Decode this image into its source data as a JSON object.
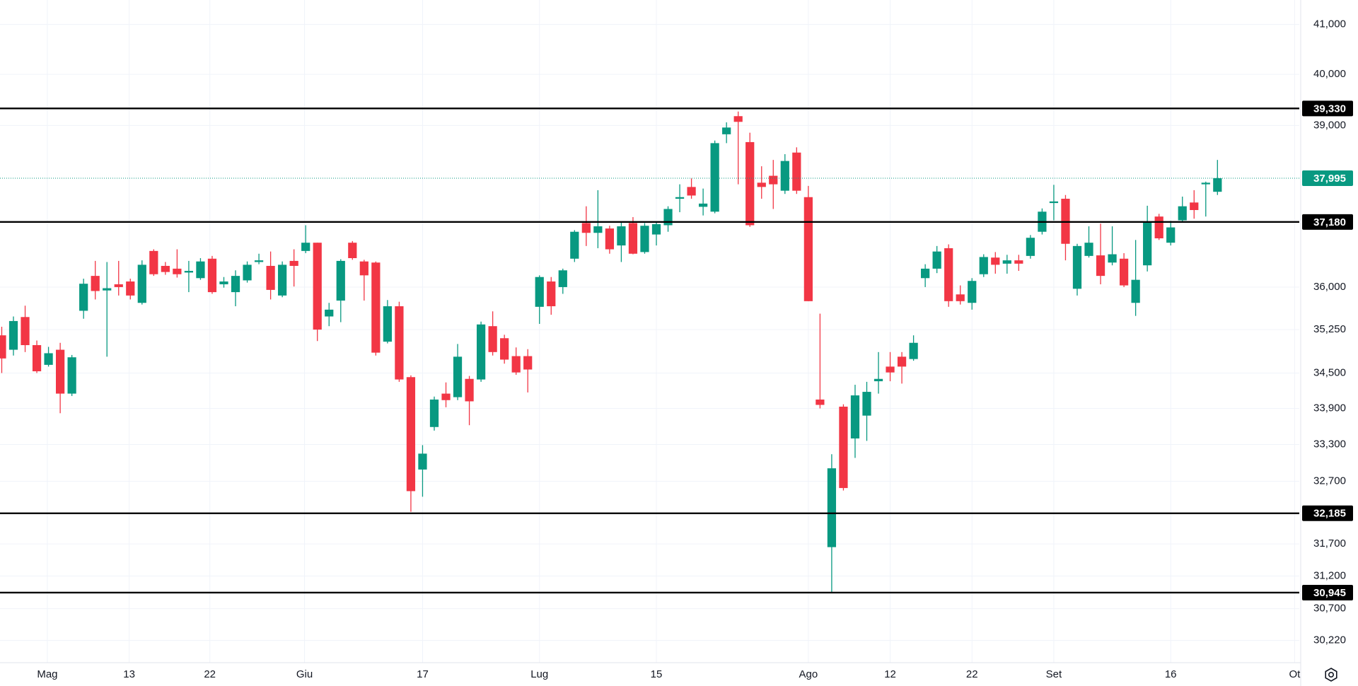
{
  "chart_data": {
    "type": "candlestick",
    "log_scale": true,
    "grid": true,
    "up_color": "#089981",
    "down_color": "#f23645",
    "level_color": "#000000",
    "xlim": [
      -0.15,
      111
    ],
    "ylim": [
      29890,
      41500
    ],
    "xticks": [
      {
        "value": 3.9,
        "label": "Mag"
      },
      {
        "value": 10.9,
        "label": "13"
      },
      {
        "value": 17.8,
        "label": "22"
      },
      {
        "value": 25.9,
        "label": "Giu"
      },
      {
        "value": 36,
        "label": "17"
      },
      {
        "value": 46,
        "label": "Lug"
      },
      {
        "value": 56,
        "label": "15"
      },
      {
        "value": 69,
        "label": "Ago"
      },
      {
        "value": 76,
        "label": "12"
      },
      {
        "value": 83,
        "label": "22"
      },
      {
        "value": 90,
        "label": "Set"
      },
      {
        "value": 100,
        "label": "16"
      },
      {
        "value": 110.6,
        "label": "Ot"
      }
    ],
    "yticks": [
      {
        "value": 41000,
        "label": "41,000"
      },
      {
        "value": 40000,
        "label": "40,000"
      },
      {
        "value": 39000,
        "label": "39,000"
      },
      {
        "value": 36000,
        "label": "36,000"
      },
      {
        "value": 35250,
        "label": "35,250"
      },
      {
        "value": 34500,
        "label": "34,500"
      },
      {
        "value": 33900,
        "label": "33,900"
      },
      {
        "value": 33300,
        "label": "33,300"
      },
      {
        "value": 32700,
        "label": "32,700"
      },
      {
        "value": 31700,
        "label": "31,700"
      },
      {
        "value": 31200,
        "label": "31,200"
      },
      {
        "value": 30700,
        "label": "30,700"
      },
      {
        "value": 30220,
        "label": "30,220"
      }
    ],
    "levels": [
      {
        "value": 39330,
        "label": "39,330"
      },
      {
        "value": 37180,
        "label": "37,180"
      },
      {
        "value": 32185,
        "label": "32,185"
      },
      {
        "value": 30945,
        "label": "30,945"
      }
    ],
    "last_price": {
      "value": 37995,
      "label": "37,995"
    },
    "open": [
      35150,
      34900,
      35470,
      34980,
      34640,
      34900,
      34150,
      35580,
      36200,
      35940,
      36050,
      36100,
      35720,
      36650,
      36380,
      36330,
      36260,
      36160,
      36510,
      36050,
      35910,
      36120,
      36450,
      36380,
      35850,
      36470,
      36650,
      36800,
      35480,
      35760,
      36800,
      36460,
      36440,
      35040,
      35660,
      34430,
      32890,
      33590,
      34150,
      34090,
      34400,
      34390,
      35310,
      35100,
      34790,
      34790,
      35650,
      36100,
      36000,
      36510,
      37160,
      36980,
      37060,
      36750,
      37160,
      36630,
      36950,
      37120,
      37610,
      37830,
      37460,
      37370,
      38830,
      39180,
      38680,
      37910,
      38040,
      37760,
      38480,
      37640,
      34050,
      31650,
      33930,
      33400,
      33780,
      34360,
      34610,
      34780,
      34740,
      36160,
      36330,
      36700,
      35870,
      35720,
      36230,
      36530,
      36420,
      36480,
      36560,
      37000,
      37530,
      37610,
      35970,
      36560,
      36570,
      36440,
      36510,
      35720,
      36390,
      37280,
      36800,
      37210,
      37540,
      37880,
      37740
    ],
    "high": [
      35300,
      35480,
      35670,
      35060,
      34950,
      35020,
      34810,
      36150,
      36470,
      36450,
      36470,
      36150,
      36480,
      36680,
      36450,
      36680,
      36470,
      36520,
      36560,
      36180,
      36300,
      36460,
      36600,
      36640,
      36460,
      36680,
      37120,
      36800,
      35720,
      36500,
      36830,
      36490,
      36460,
      35770,
      35740,
      34460,
      33290,
      34100,
      34340,
      35000,
      34450,
      35390,
      35570,
      35160,
      34940,
      34910,
      36210,
      36180,
      36330,
      37030,
      37470,
      37770,
      37110,
      37180,
      37270,
      37160,
      37190,
      37470,
      37880,
      37990,
      37800,
      38710,
      39060,
      39270,
      38860,
      38220,
      38340,
      38450,
      38580,
      37850,
      35530,
      33140,
      33970,
      34300,
      34350,
      34860,
      34860,
      34860,
      35150,
      36410,
      36740,
      36770,
      36030,
      36160,
      36590,
      36630,
      36580,
      36580,
      36940,
      37430,
      37870,
      37680,
      36780,
      37100,
      37150,
      37100,
      36610,
      36850,
      37480,
      37330,
      37200,
      37650,
      37770,
      37930,
      38340
    ],
    "low": [
      34500,
      34800,
      34860,
      34500,
      34610,
      33820,
      34110,
      35440,
      35780,
      34780,
      35850,
      35780,
      35690,
      36200,
      36220,
      36170,
      35910,
      36130,
      35880,
      35990,
      35660,
      36080,
      36410,
      35780,
      35820,
      36010,
      36610,
      35050,
      35310,
      35380,
      36490,
      35760,
      34800,
      35010,
      34350,
      32210,
      32450,
      33530,
      33920,
      34040,
      33620,
      34350,
      34800,
      34660,
      34470,
      34170,
      35350,
      35510,
      35880,
      36450,
      36740,
      36700,
      36600,
      36450,
      36590,
      36600,
      36750,
      37000,
      37360,
      37610,
      37300,
      37340,
      38660,
      37880,
      37090,
      37610,
      37420,
      37700,
      37700,
      35750,
      33900,
      30945,
      32550,
      33080,
      33360,
      34150,
      34360,
      34320,
      34710,
      36000,
      36250,
      35650,
      35690,
      35600,
      36180,
      36240,
      36240,
      36290,
      36510,
      36950,
      37210,
      36480,
      35850,
      36530,
      36050,
      36390,
      36000,
      35490,
      36280,
      36850,
      36750,
      37180,
      37240,
      37280,
      37680
    ],
    "close": [
      34750,
      35400,
      34980,
      34530,
      34840,
      34150,
      34770,
      36060,
      35930,
      35980,
      36000,
      35850,
      36400,
      36230,
      36270,
      36230,
      36290,
      36460,
      35910,
      36100,
      36200,
      36400,
      36480,
      35950,
      36400,
      36380,
      36800,
      35250,
      35600,
      36470,
      36520,
      36210,
      34850,
      35660,
      34390,
      32540,
      33150,
      34050,
      34040,
      34780,
      34020,
      35340,
      34860,
      34730,
      34510,
      34560,
      36180,
      35660,
      36300,
      37000,
      36980,
      37100,
      36680,
      37100,
      36600,
      37110,
      37140,
      37420,
      37640,
      37670,
      37520,
      38660,
      38960,
      39070,
      37120,
      37830,
      37880,
      38320,
      37760,
      35750,
      33960,
      32910,
      32590,
      34120,
      34180,
      34400,
      34510,
      34610,
      35020,
      36330,
      36640,
      35750,
      35750,
      36110,
      36540,
      36400,
      36480,
      36420,
      36890,
      37370,
      37560,
      36780,
      36740,
      36800,
      36200,
      36590,
      36030,
      36130,
      37180,
      36880,
      37080,
      37470,
      37400,
      37910,
      37995
    ]
  }
}
